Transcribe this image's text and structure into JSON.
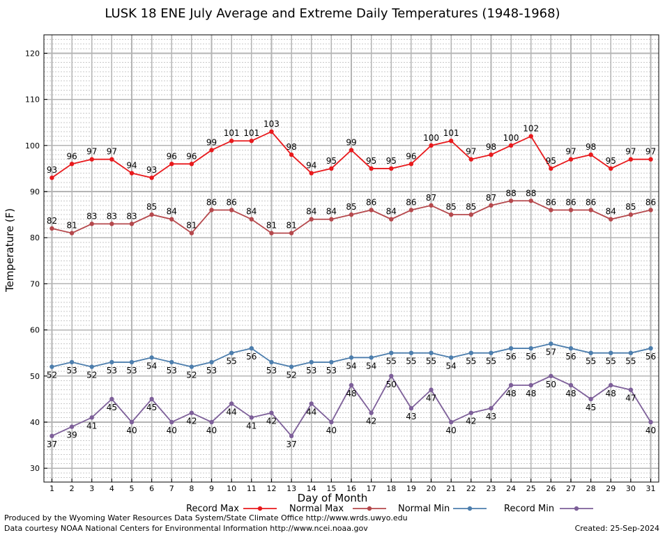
{
  "chart_data": {
    "type": "line",
    "title": "LUSK 18 ENE July Average and Extreme Daily Temperatures (1948-1968)",
    "xlabel": "Day of Month",
    "ylabel": "Temperature (F)",
    "x": [
      1,
      2,
      3,
      4,
      5,
      6,
      7,
      8,
      9,
      10,
      11,
      12,
      13,
      14,
      15,
      16,
      17,
      18,
      19,
      20,
      21,
      22,
      23,
      24,
      25,
      26,
      27,
      28,
      29,
      30,
      31
    ],
    "xlim": [
      0.6,
      31.4
    ],
    "ylim": [
      27,
      124
    ],
    "yticks": [
      30,
      40,
      50,
      60,
      70,
      80,
      90,
      100,
      110,
      120
    ],
    "grid": true,
    "legend_position": "bottom",
    "series": [
      {
        "name": "Record Max",
        "color": "#e8191c",
        "values": [
          93,
          96,
          97,
          97,
          94,
          93,
          96,
          96,
          99,
          101,
          101,
          103,
          98,
          94,
          95,
          99,
          95,
          95,
          96,
          100,
          101,
          97,
          98,
          100,
          102,
          95,
          97,
          98,
          95,
          97,
          97
        ]
      },
      {
        "name": "Normal Max",
        "color": "#b5484c",
        "values": [
          82,
          81,
          83,
          83,
          83,
          85,
          84,
          81,
          86,
          86,
          84,
          81,
          81,
          84,
          84,
          85,
          86,
          84,
          86,
          87,
          85,
          85,
          87,
          88,
          88,
          86,
          86,
          86,
          84,
          85,
          86
        ]
      },
      {
        "name": "Normal Min",
        "color": "#4d7ead",
        "values": [
          52,
          53,
          52,
          53,
          53,
          54,
          53,
          52,
          53,
          55,
          56,
          53,
          52,
          53,
          53,
          54,
          54,
          55,
          55,
          55,
          54,
          55,
          55,
          56,
          56,
          57,
          56,
          55,
          55,
          55,
          56
        ]
      },
      {
        "name": "Record Min",
        "color": "#7d5f99",
        "values": [
          37,
          39,
          41,
          45,
          40,
          45,
          40,
          42,
          40,
          44,
          41,
          42,
          37,
          44,
          40,
          48,
          42,
          50,
          43,
          47,
          40,
          42,
          43,
          48,
          48,
          50,
          48,
          45,
          48,
          47,
          40
        ]
      }
    ]
  },
  "footer": {
    "credit_line1": "Produced by the Wyoming Water Resources Data System/State Climate Office http://www.wrds.uwyo.edu",
    "credit_line2": "Data courtesy NOAA National Centers for Environmental Information http://www.ncei.noaa.gov",
    "created": "Created:  25-Sep-2024"
  }
}
